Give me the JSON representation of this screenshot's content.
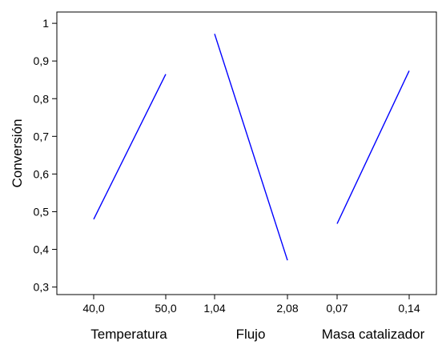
{
  "chart_data": {
    "type": "line",
    "ylabel": "Conversión",
    "ylim": [
      0.28,
      1.03
    ],
    "y_ticks": [
      {
        "value": 0.3,
        "label": "0,3"
      },
      {
        "value": 0.4,
        "label": "0,4"
      },
      {
        "value": 0.5,
        "label": "0,5"
      },
      {
        "value": 0.6,
        "label": "0,6"
      },
      {
        "value": 0.7,
        "label": "0,7"
      },
      {
        "value": 0.8,
        "label": "0,8"
      },
      {
        "value": 0.9,
        "label": "0,9"
      },
      {
        "value": 1.0,
        "label": "1"
      }
    ],
    "grid": false,
    "line_color": "#0000ff",
    "panels": [
      {
        "factor": "Temperatura",
        "low_label": "40,0",
        "high_label": "50,0",
        "x": [
          40.0,
          50.0
        ],
        "y": [
          0.48,
          0.865
        ]
      },
      {
        "factor": "Flujo",
        "low_label": "1,04",
        "high_label": "2,08",
        "x": [
          1.04,
          2.08
        ],
        "y": [
          0.972,
          0.371
        ]
      },
      {
        "factor": "Masa catalizador",
        "low_label": "0,07",
        "high_label": "0,14",
        "x": [
          0.07,
          0.14
        ],
        "y": [
          0.468,
          0.874
        ]
      }
    ]
  }
}
